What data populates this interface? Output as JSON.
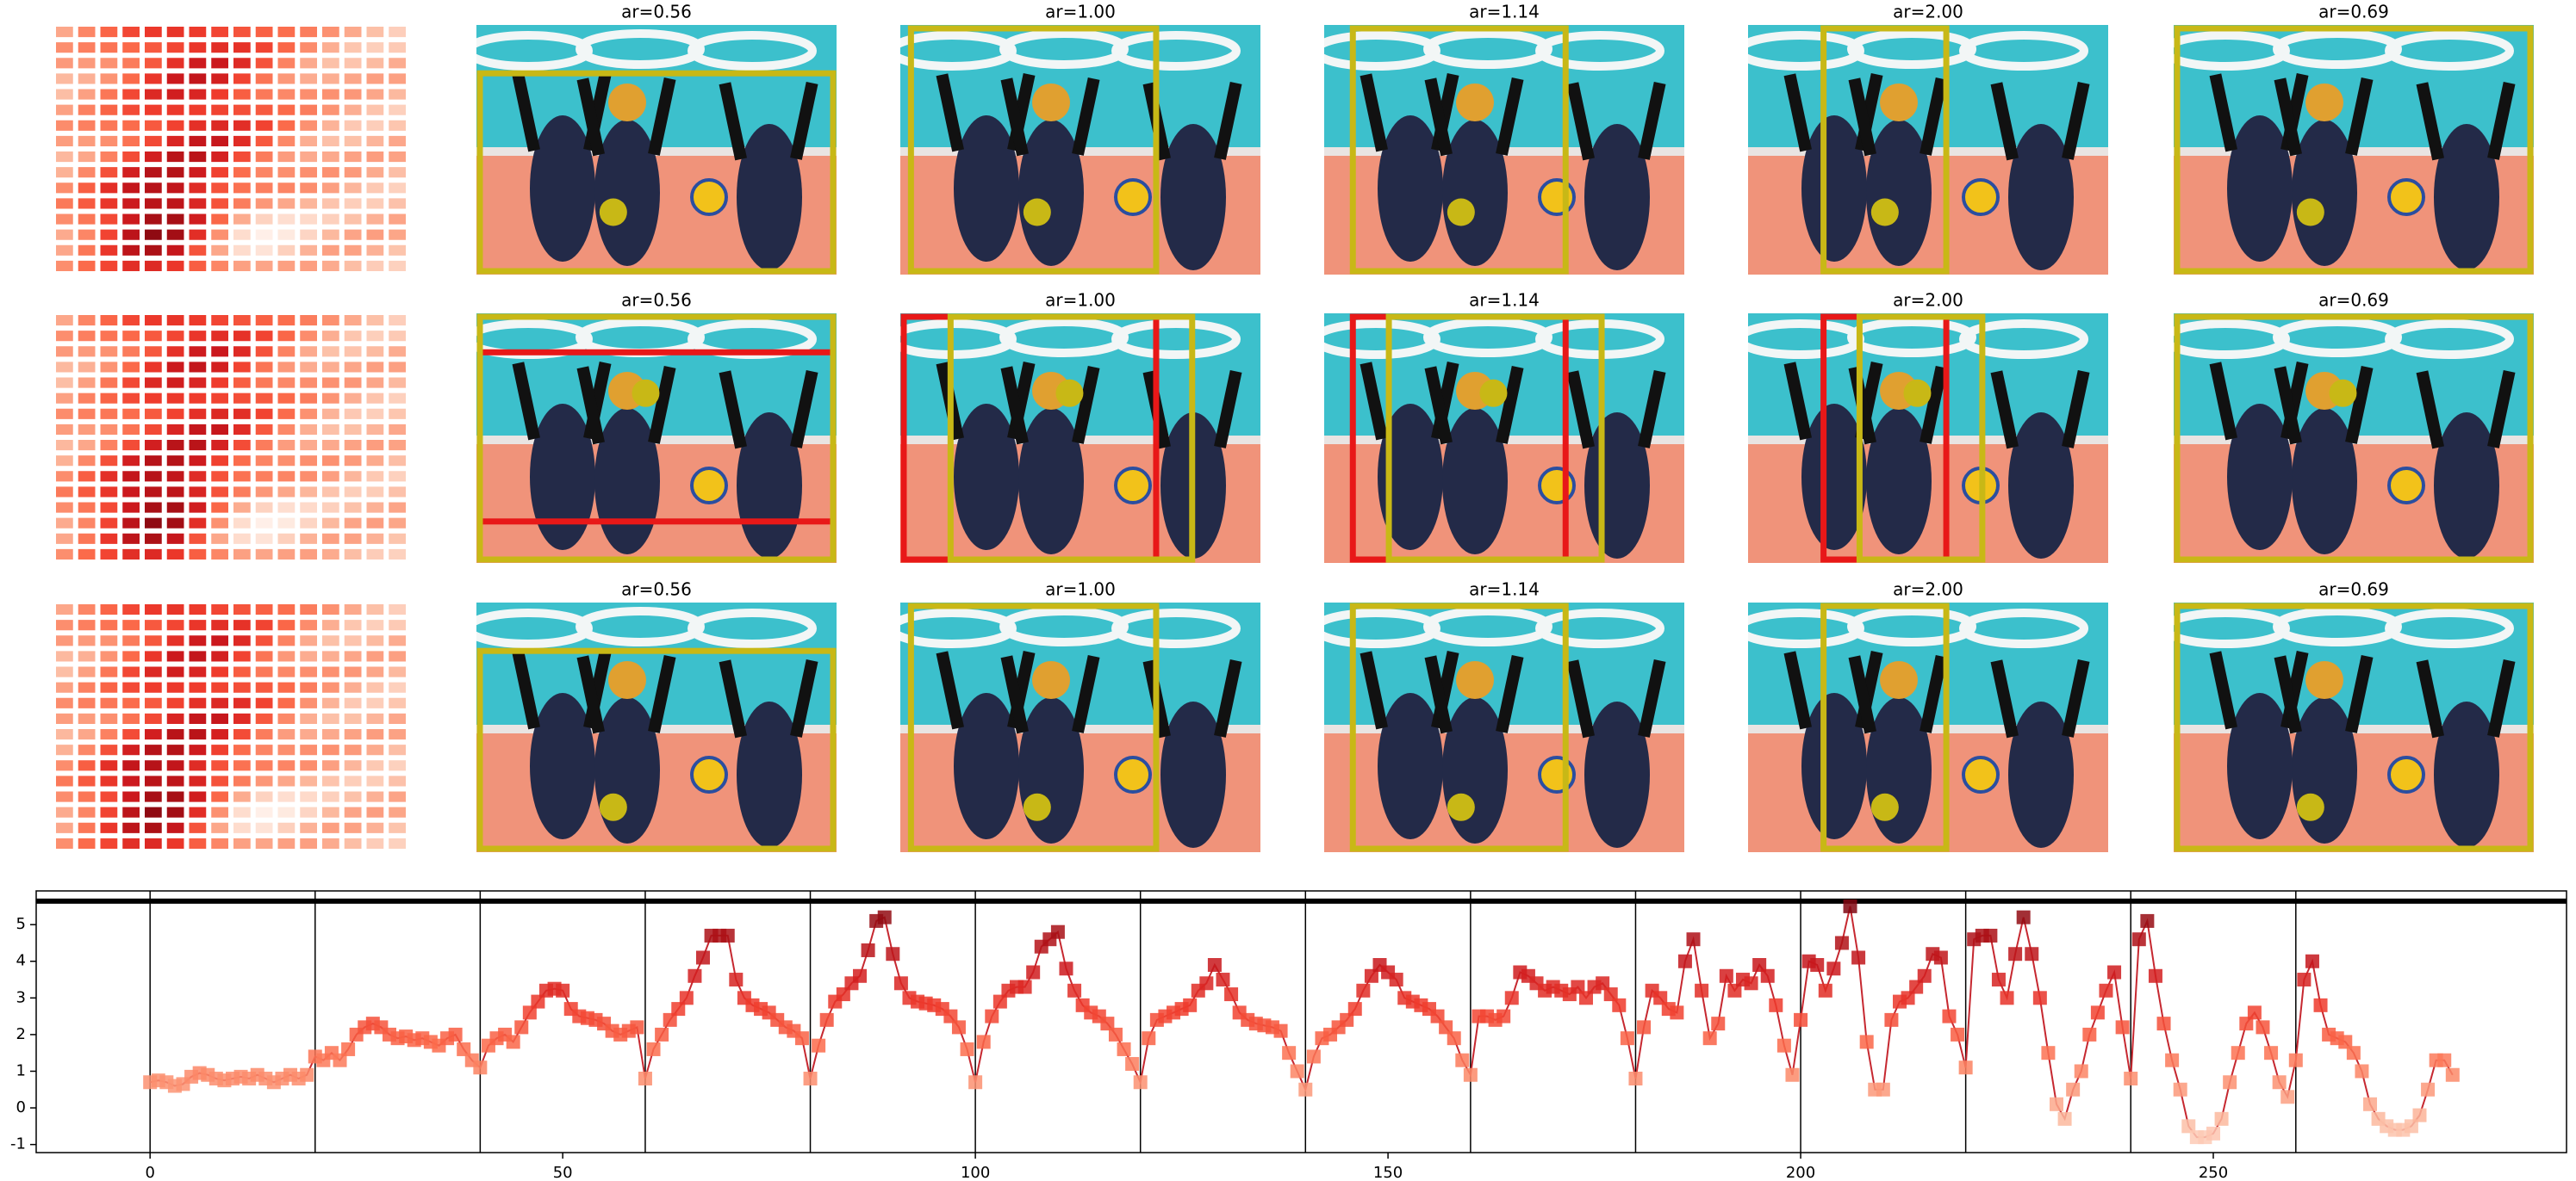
{
  "panels": {
    "rows": [
      {
        "titles": [
          "ar=0.56",
          "ar=1.00",
          "ar=1.14",
          "ar=2.00",
          "ar=0.69"
        ]
      },
      {
        "titles": [
          "ar=0.56",
          "ar=1.00",
          "ar=1.14",
          "ar=2.00",
          "ar=0.69"
        ]
      },
      {
        "titles": [
          "ar=0.56",
          "ar=1.00",
          "ar=1.14",
          "ar=2.00",
          "ar=0.69"
        ]
      }
    ]
  },
  "chart_data": {
    "type": "line",
    "colormap": "Reds",
    "color": "#c62830",
    "x": [
      0,
      1,
      2,
      3,
      4,
      5,
      6,
      7,
      8,
      9,
      10,
      11,
      12,
      13,
      14,
      15,
      16,
      17,
      18,
      19,
      20,
      21,
      22,
      23,
      24,
      25,
      26,
      27,
      28,
      29,
      30,
      31,
      32,
      33,
      34,
      35,
      36,
      37,
      38,
      39,
      40,
      41,
      42,
      43,
      44,
      45,
      46,
      47,
      48,
      49,
      50,
      51,
      52,
      53,
      54,
      55,
      56,
      57,
      58,
      59,
      60,
      61,
      62,
      63,
      64,
      65,
      66,
      67,
      68,
      69,
      70,
      71,
      72,
      73,
      74,
      75,
      76,
      77,
      78,
      79,
      80,
      81,
      82,
      83,
      84,
      85,
      86,
      87,
      88,
      89,
      90,
      91,
      92,
      93,
      94,
      95,
      96,
      97,
      98,
      99,
      100,
      101,
      102,
      103,
      104,
      105,
      106,
      107,
      108,
      109,
      110,
      111,
      112,
      113,
      114,
      115,
      116,
      117,
      118,
      119,
      120,
      121,
      122,
      123,
      124,
      125,
      126,
      127,
      128,
      129,
      130,
      131,
      132,
      133,
      134,
      135,
      136,
      137,
      138,
      139,
      140,
      141,
      142,
      143,
      144,
      145,
      146,
      147,
      148,
      149,
      150,
      151,
      152,
      153,
      154,
      155,
      156,
      157,
      158,
      159,
      160,
      161,
      162,
      163,
      164,
      165,
      166,
      167,
      168,
      169,
      170,
      171,
      172,
      173,
      174,
      175,
      176,
      177,
      178,
      179,
      180,
      181,
      182,
      183,
      184,
      185,
      186,
      187,
      188,
      189,
      190,
      191,
      192,
      193,
      194,
      195,
      196,
      197,
      198,
      199,
      200,
      201,
      202,
      203,
      204,
      205,
      206,
      207,
      208,
      209,
      210,
      211,
      212,
      213,
      214,
      215,
      216,
      217,
      218,
      219,
      220,
      221,
      222,
      223,
      224,
      225,
      226,
      227,
      228,
      229,
      230,
      231,
      232,
      233,
      234,
      235,
      236,
      237,
      238,
      239,
      240,
      241,
      242,
      243,
      244,
      245,
      246,
      247,
      248,
      249,
      250,
      251,
      252,
      253,
      254,
      255,
      256,
      257,
      258,
      259,
      260,
      261,
      262,
      263,
      264,
      265,
      266,
      267,
      268,
      269,
      270,
      271,
      272,
      273,
      274,
      275,
      276,
      277,
      278,
      279
    ],
    "values": [
      0.7,
      0.75,
      0.7,
      0.6,
      0.65,
      0.85,
      0.95,
      0.9,
      0.8,
      0.75,
      0.8,
      0.85,
      0.8,
      0.9,
      0.8,
      0.7,
      0.8,
      0.9,
      0.8,
      0.9,
      1.4,
      1.3,
      1.5,
      1.3,
      1.6,
      2.0,
      2.2,
      2.3,
      2.2,
      2.0,
      1.9,
      1.95,
      1.85,
      1.9,
      1.8,
      1.7,
      1.9,
      2.0,
      1.6,
      1.3,
      1.1,
      1.7,
      1.9,
      2.0,
      1.8,
      2.2,
      2.6,
      2.9,
      3.2,
      3.25,
      3.2,
      2.7,
      2.5,
      2.45,
      2.4,
      2.3,
      2.1,
      2.0,
      2.1,
      2.2,
      0.8,
      1.6,
      2.0,
      2.4,
      2.7,
      3.0,
      3.6,
      4.1,
      4.7,
      4.7,
      4.7,
      3.5,
      3.0,
      2.8,
      2.7,
      2.6,
      2.4,
      2.2,
      2.1,
      1.9,
      0.8,
      1.7,
      2.4,
      2.9,
      3.1,
      3.4,
      3.6,
      4.3,
      5.1,
      5.2,
      4.2,
      3.4,
      3.0,
      2.9,
      2.85,
      2.8,
      2.7,
      2.5,
      2.2,
      1.6,
      0.7,
      1.8,
      2.5,
      2.9,
      3.2,
      3.3,
      3.3,
      3.7,
      4.4,
      4.6,
      4.8,
      3.8,
      3.2,
      2.8,
      2.6,
      2.5,
      2.3,
      2.0,
      1.6,
      1.2,
      0.7,
      1.9,
      2.4,
      2.5,
      2.6,
      2.7,
      2.8,
      3.2,
      3.4,
      3.9,
      3.5,
      3.1,
      2.6,
      2.4,
      2.3,
      2.25,
      2.2,
      2.1,
      1.5,
      1.0,
      0.5,
      1.4,
      1.9,
      2.0,
      2.2,
      2.4,
      2.7,
      3.2,
      3.6,
      3.9,
      3.7,
      3.5,
      3.0,
      2.9,
      2.8,
      2.7,
      2.5,
      2.2,
      1.9,
      1.3,
      0.9,
      2.5,
      2.5,
      2.4,
      2.5,
      3.0,
      3.7,
      3.6,
      3.4,
      3.2,
      3.3,
      3.2,
      3.1,
      3.3,
      3.0,
      3.3,
      3.4,
      3.1,
      2.8,
      1.9,
      0.8,
      2.2,
      3.2,
      3.0,
      2.7,
      2.6,
      4.0,
      4.6,
      3.2,
      1.9,
      2.3,
      3.6,
      3.2,
      3.5,
      3.4,
      3.9,
      3.6,
      2.8,
      1.7,
      0.9,
      2.4,
      4.0,
      3.9,
      3.2,
      3.8,
      4.5,
      5.5,
      4.1,
      1.8,
      0.5,
      0.5,
      2.4,
      2.9,
      3.0,
      3.3,
      3.6,
      4.2,
      4.1,
      2.5,
      2.0,
      1.1,
      4.6,
      4.7,
      4.7,
      3.5,
      3.0,
      4.2,
      5.2,
      4.2,
      3.0,
      1.5,
      0.1,
      -0.3,
      0.5,
      1.0,
      2.0,
      2.6,
      3.2,
      3.7,
      2.2,
      0.8,
      4.6,
      5.1,
      3.6,
      2.3,
      1.3,
      0.5,
      -0.5,
      -0.8,
      -0.8,
      -0.7,
      -0.3,
      0.7,
      1.5,
      2.3,
      2.6,
      2.2,
      1.5,
      0.7,
      0.3,
      1.3,
      3.5,
      4.0,
      2.8,
      2.0,
      1.9,
      1.8,
      1.5,
      1.0,
      0.1,
      -0.3,
      -0.5,
      -0.6,
      -0.6,
      -0.5,
      -0.2,
      0.5,
      1.3,
      1.3,
      0.9
    ],
    "xlim": [
      -13.8,
      292.8
    ],
    "ylim": [
      -1.22,
      5.92
    ],
    "xticks": [
      0,
      50,
      100,
      150,
      200,
      250
    ],
    "yticks": [
      -1,
      0,
      1,
      2,
      3,
      4,
      5
    ],
    "vlines": [
      0,
      20,
      40,
      60,
      80,
      100,
      120,
      140,
      160,
      180,
      200,
      220,
      240,
      260
    ],
    "hline": 5.64
  }
}
